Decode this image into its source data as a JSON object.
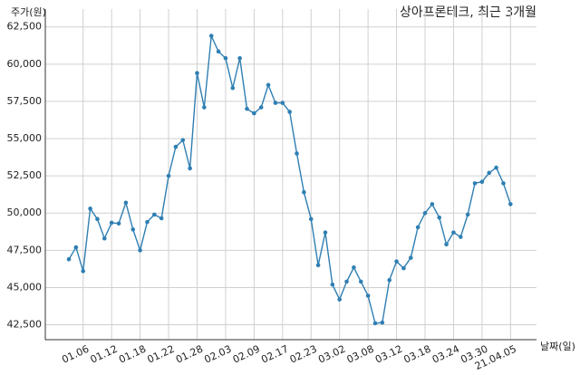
{
  "chart_data": {
    "type": "line",
    "title": "상아프론테크, 최근 3개월",
    "y_axis_label": "주가(원)",
    "x_axis_label": "날짜(일)",
    "categories": [
      null,
      null,
      "01.06",
      null,
      null,
      null,
      "01.12",
      null,
      null,
      null,
      "01.18",
      null,
      null,
      null,
      "01.22",
      null,
      null,
      null,
      "01.28",
      null,
      null,
      null,
      "02.03",
      null,
      null,
      null,
      "02.09",
      null,
      null,
      null,
      "02.17",
      null,
      null,
      null,
      "02.23",
      null,
      null,
      null,
      "03.02",
      null,
      null,
      null,
      "03.08",
      null,
      null,
      null,
      "03.12",
      null,
      null,
      null,
      "03.18",
      null,
      null,
      null,
      "03.24",
      null,
      null,
      null,
      "03.30",
      null,
      null,
      null,
      "21.04.05"
    ],
    "series": [
      {
        "name": "주가",
        "color": "#2f7fb3",
        "values": [
          46900,
          47700,
          46100,
          50300,
          49600,
          48300,
          49350,
          49300,
          50700,
          48900,
          47500,
          49400,
          49900,
          49650,
          52500,
          54450,
          54900,
          53000,
          59400,
          57100,
          61900,
          60850,
          60400,
          58400,
          60400,
          57000,
          56700,
          57100,
          58600,
          57400,
          57400,
          56800,
          54000,
          51400,
          49600,
          46500,
          48700,
          45200,
          44200,
          45400,
          46350,
          45400,
          44450,
          42600,
          42650,
          45500,
          46750,
          46300,
          47000,
          49050,
          50000,
          50600,
          49700,
          47900,
          48700,
          48400,
          49900,
          52000,
          52100,
          52700,
          53050,
          52000,
          50600
        ]
      }
    ],
    "ylim": [
      41500,
      63700
    ],
    "yticks": [
      {
        "value": 42500,
        "label": "42,500"
      },
      {
        "value": 45000,
        "label": "45,000"
      },
      {
        "value": 47500,
        "label": "47,500"
      },
      {
        "value": 50000,
        "label": "50,000"
      },
      {
        "value": 52500,
        "label": "52,500"
      },
      {
        "value": 55000,
        "label": "55,000"
      },
      {
        "value": 57500,
        "label": "57,500"
      },
      {
        "value": 60000,
        "label": "60,000"
      },
      {
        "value": 62500,
        "label": "62,500"
      }
    ],
    "grid": true
  }
}
